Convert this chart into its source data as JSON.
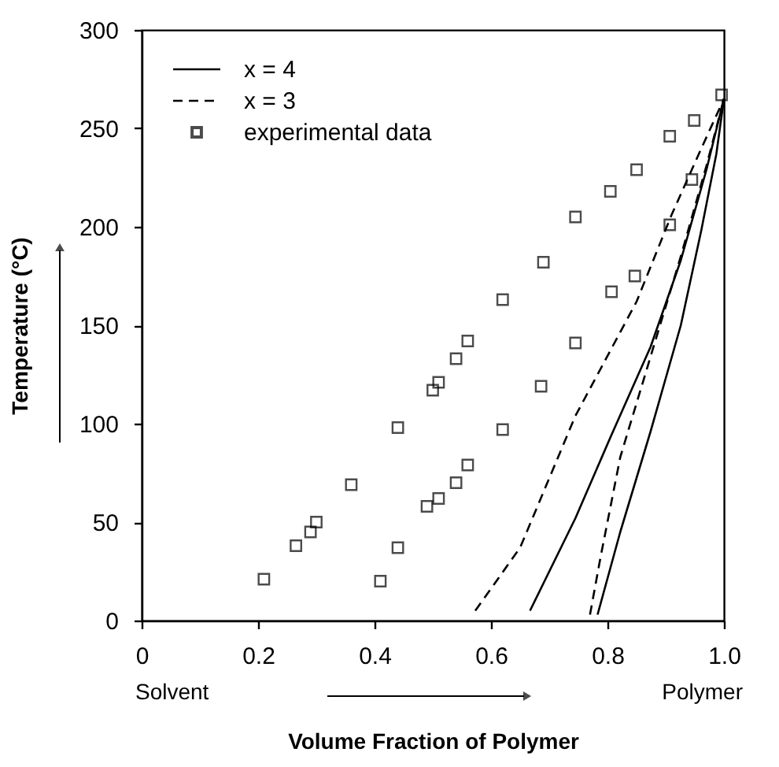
{
  "chart_data": {
    "type": "scatter",
    "xlabel": "Volume Fraction of Polymer",
    "ylabel": "Temperature (°C)",
    "xlim": [
      0,
      1.0
    ],
    "ylim": [
      0,
      300
    ],
    "xticks": [
      {
        "value": 0,
        "label": "0"
      },
      0.2,
      0.4,
      0.6,
      0.8,
      {
        "value": 1.0,
        "label": "1.0"
      }
    ],
    "yticks": [
      0,
      50,
      100,
      150,
      200,
      250,
      300
    ],
    "grid": false,
    "legend": "top left",
    "annotations": [
      "Solvent",
      "Polymer"
    ],
    "series": [
      {
        "name": "x = 4",
        "type": "line",
        "line_style": "solid",
        "marker": "none",
        "color": "#000000",
        "x": [
          0.667,
          0.745,
          0.805,
          0.874,
          0.926,
          0.97,
          1.0,
          null,
          0.783,
          0.822,
          0.874,
          0.926,
          0.961,
          0.987,
          1.0
        ],
        "values": [
          5,
          52,
          93,
          139,
          183,
          229,
          265,
          null,
          3,
          45,
          96,
          150,
          198,
          237,
          265
        ]
      },
      {
        "name": "x = 3",
        "type": "line",
        "line_style": "dashed",
        "marker": "none",
        "color": "#000000",
        "x": [
          0.573,
          0.65,
          0.745,
          0.85,
          0.91,
          0.96,
          1.0,
          null,
          0.77,
          0.788,
          0.822,
          0.874,
          0.926,
          0.97,
          1.0
        ],
        "values": [
          5,
          37,
          104,
          162,
          206,
          239,
          265,
          null,
          3,
          32,
          83,
          134,
          185,
          231,
          265
        ]
      },
      {
        "name": "experimental data",
        "type": "scatter",
        "marker": "square",
        "color": "#000000",
        "x": [
          0.21,
          0.265,
          0.29,
          0.3,
          0.36,
          0.44,
          0.5,
          0.51,
          0.54,
          0.56,
          0.62,
          0.69,
          0.745,
          0.805,
          0.85,
          0.907,
          0.949,
          0.996,
          0.41,
          0.44,
          0.49,
          0.51,
          0.54,
          0.56,
          0.62,
          0.686,
          0.745,
          0.807,
          0.847,
          0.907,
          0.945
        ],
        "values": [
          21,
          38,
          45,
          50,
          69,
          98,
          117,
          121,
          133,
          142,
          163,
          182,
          205,
          218,
          229,
          246,
          254,
          267,
          20,
          37,
          58,
          62,
          70,
          79,
          97,
          119,
          141,
          167,
          175,
          201,
          224
        ]
      }
    ]
  }
}
